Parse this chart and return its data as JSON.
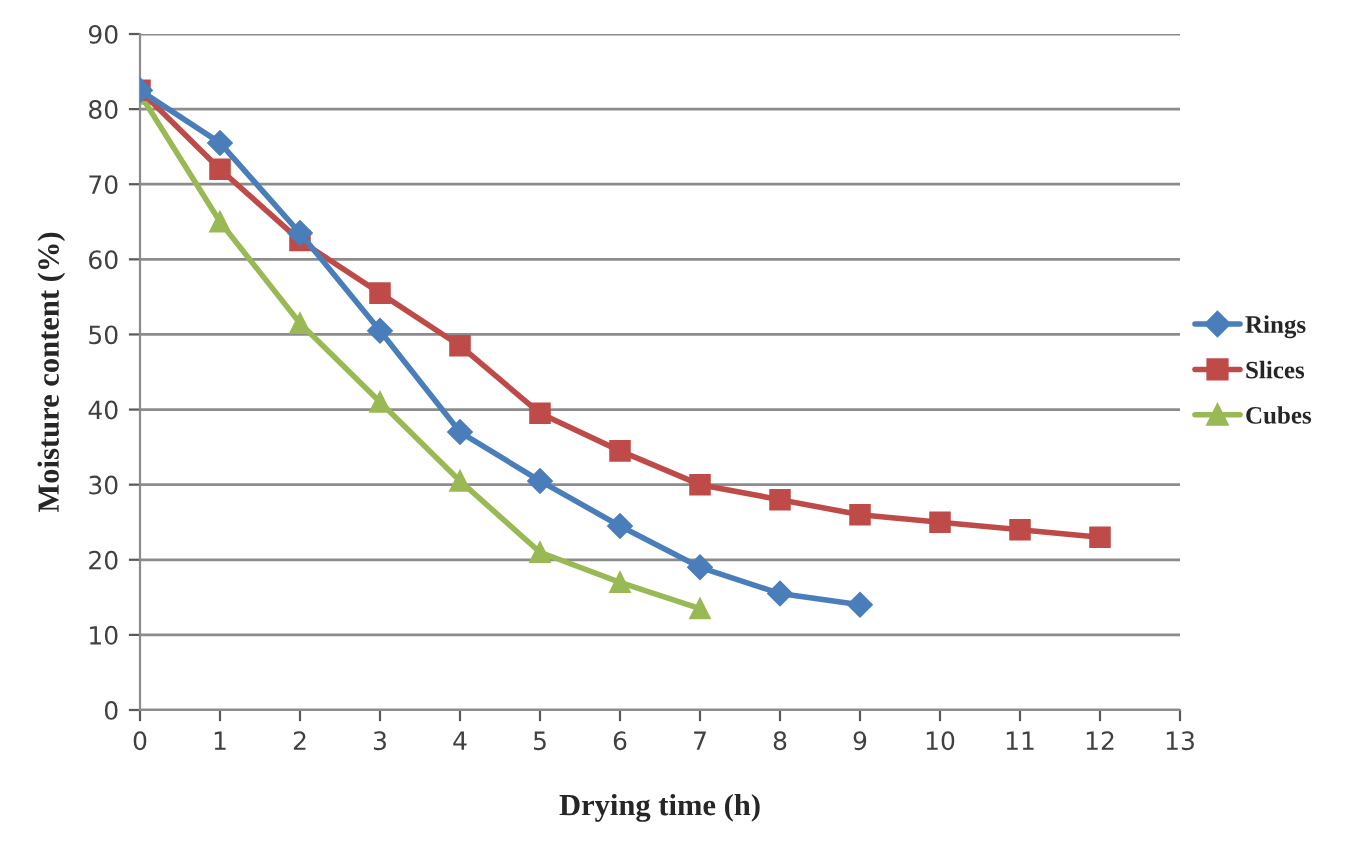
{
  "chart_data": {
    "type": "line",
    "xlabel": "Drying time (h)",
    "ylabel": "Moisture content (%)",
    "xlim": [
      0,
      13
    ],
    "xticks": [
      0,
      1,
      2,
      3,
      4,
      5,
      6,
      7,
      8,
      9,
      10,
      11,
      12,
      13
    ],
    "ylim": [
      0,
      90
    ],
    "yticks": [
      0,
      10,
      20,
      30,
      40,
      50,
      60,
      70,
      80,
      90
    ],
    "grid": "y",
    "legend": "right",
    "line_style": "solid",
    "series": [
      {
        "name": "Rings",
        "color": "#4a7ebb",
        "marker": "diamond",
        "x": [
          0,
          1,
          2,
          3,
          4,
          5,
          6,
          7,
          8,
          9
        ],
        "values": [
          82.5,
          75.5,
          63.5,
          50.5,
          37,
          30.5,
          24.5,
          19,
          15.5,
          14
        ]
      },
      {
        "name": "Slices",
        "color": "#be4b48",
        "marker": "square",
        "x": [
          0,
          1,
          2,
          3,
          4,
          5,
          6,
          7,
          8,
          9,
          10,
          11,
          12
        ],
        "values": [
          82.5,
          72,
          62.5,
          55.5,
          48.5,
          39.5,
          34.5,
          30,
          28,
          26,
          25,
          24,
          23
        ]
      },
      {
        "name": "Cubes",
        "color": "#98b954",
        "marker": "triangle",
        "x": [
          0,
          1,
          2,
          3,
          4,
          5,
          6,
          7
        ],
        "values": [
          82,
          65,
          51.5,
          41,
          30.5,
          21,
          17,
          13.5
        ]
      }
    ]
  }
}
